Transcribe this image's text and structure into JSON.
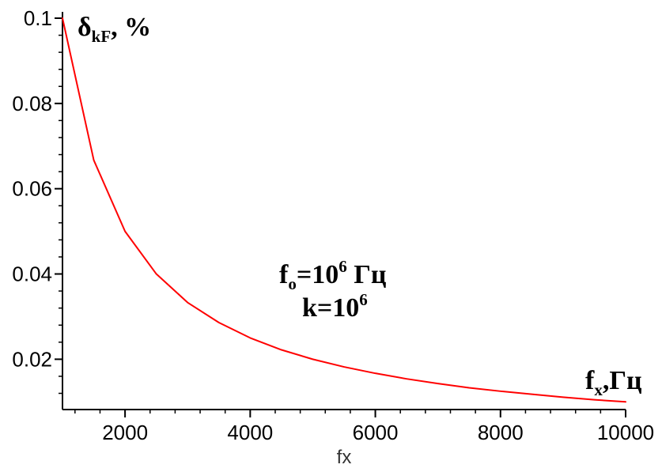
{
  "chart_data": {
    "type": "line",
    "xlabel": "fx",
    "xlim": [
      1000,
      10000
    ],
    "ylim": [
      0.0082,
      0.1
    ],
    "x_ticks": [
      2000,
      4000,
      6000,
      8000,
      10000
    ],
    "y_ticks": [
      0.02,
      0.04,
      0.06,
      0.08,
      0.1
    ],
    "x_tick_labels": [
      "2000",
      "4000",
      "6000",
      "8000",
      "10000"
    ],
    "y_tick_labels": [
      "0.02",
      "0.04",
      "0.06",
      "0.08",
      "0.1"
    ],
    "grid": false,
    "series": [
      {
        "color": "#ff0000",
        "x": [
          1000,
          1500,
          2000,
          2500,
          3000,
          3500,
          4000,
          4500,
          5000,
          5500,
          6000,
          6500,
          7000,
          7500,
          8000,
          8500,
          9000,
          9500,
          10000
        ],
        "y": [
          0.1,
          0.0667,
          0.05,
          0.04,
          0.0333,
          0.0286,
          0.025,
          0.0222,
          0.02,
          0.0182,
          0.0167,
          0.0154,
          0.0143,
          0.0133,
          0.0125,
          0.0118,
          0.0111,
          0.0105,
          0.01
        ]
      }
    ],
    "annotations": {
      "y_unit": {
        "main": "δ",
        "sub": "kF",
        "tail": ", %"
      },
      "x_unit": {
        "main": "f",
        "sub": "x",
        "tail": ",Гц"
      },
      "params": [
        {
          "pre": "f",
          "sub": "o",
          "mid": "=10",
          "sup": "6",
          "post": " Гц"
        },
        {
          "pre": "k=10",
          "sup": "6"
        }
      ]
    }
  }
}
